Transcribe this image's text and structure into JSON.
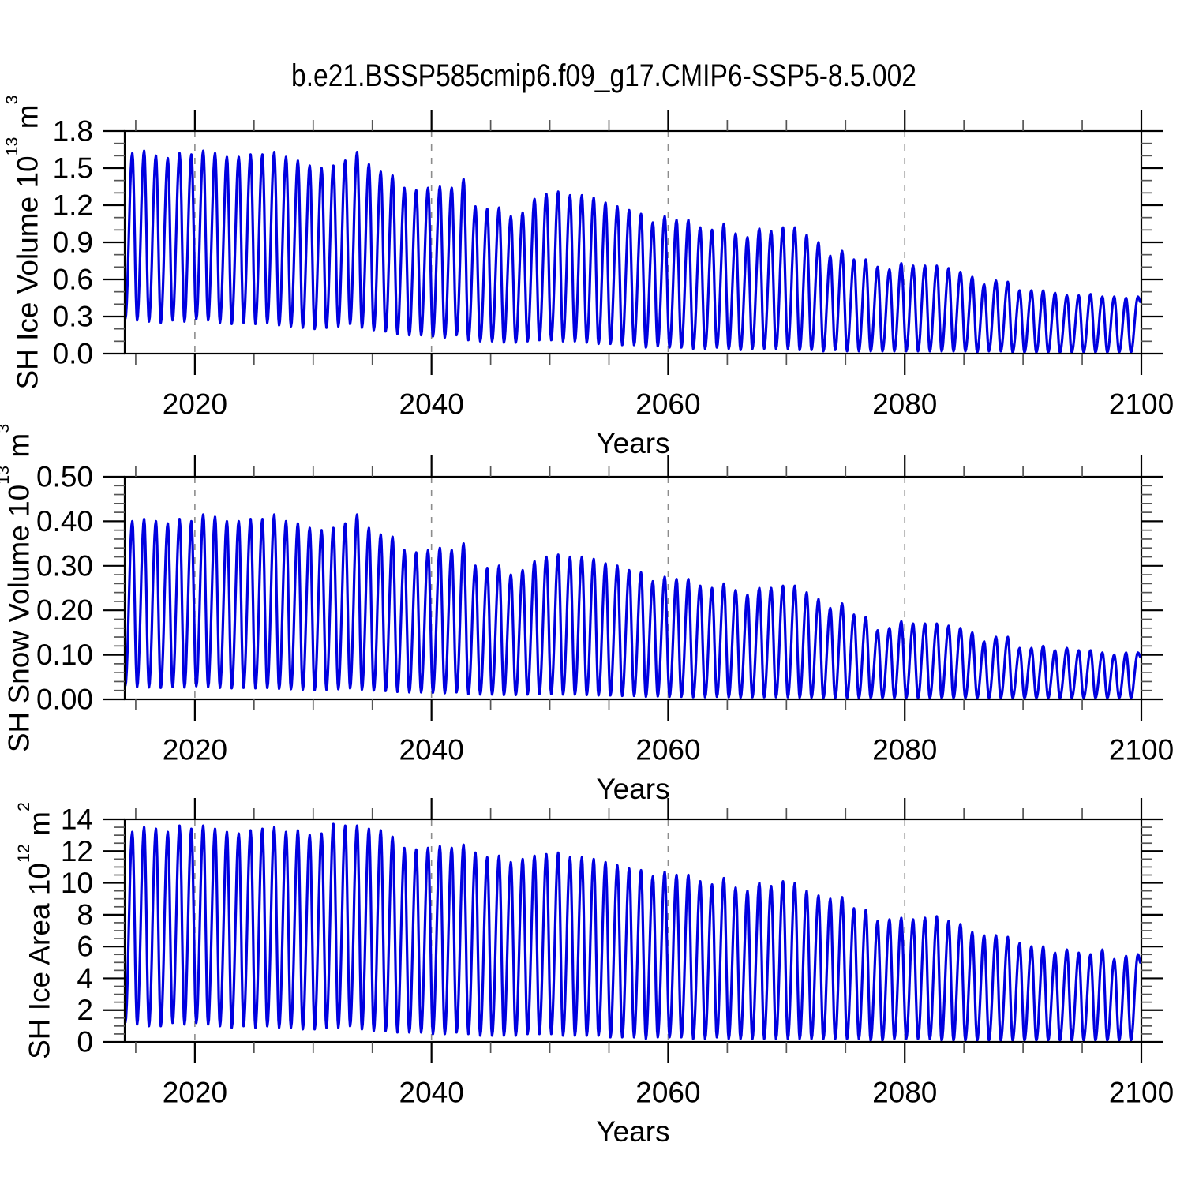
{
  "title": "b.e21.BSSP585cmip6.f09_g17.CMIP6-SSP5-8.5.002",
  "x_axis": {
    "label": "Years",
    "major_tick_years": [
      2020,
      2040,
      2060,
      2080,
      2100
    ],
    "major_tick_labels": [
      "2020",
      "2040",
      "2060",
      "2080",
      "2100"
    ],
    "minor_tick_step_years": 5,
    "range_years": [
      2014.07,
      2100
    ],
    "dashed_gridlines_at": [
      2020,
      2040,
      2060,
      2080
    ]
  },
  "style": {
    "line_color": "#0000e0",
    "axis_color": "#000000",
    "minor_tick_color": "#555555",
    "grid_color": "#8c8c8c",
    "background": "#ffffff"
  },
  "panels": [
    {
      "id": "ice-volume",
      "ylabel": {
        "base": "SH Ice Volume 10",
        "exp": "13",
        "unit": " m",
        "unit_exp": "3"
      },
      "y_tick_labels": [
        "0.0",
        "0.3",
        "0.6",
        "0.9",
        "1.2",
        "1.5",
        "1.8"
      ],
      "y_major_step": 0.3,
      "y_minor_step": 0.1,
      "ylim": [
        0,
        1.8
      ]
    },
    {
      "id": "snow-volume",
      "ylabel": {
        "base": "SH Snow Volume 10",
        "exp": "13",
        "unit": " m",
        "unit_exp": "3"
      },
      "y_tick_labels": [
        "0.00",
        "0.10",
        "0.20",
        "0.30",
        "0.40",
        "0.50"
      ],
      "y_major_step": 0.1,
      "y_minor_step": 0.02,
      "ylim": [
        0,
        0.5
      ]
    },
    {
      "id": "ice-area",
      "ylabel": {
        "base": "SH Ice Area 10",
        "exp": "12",
        "unit": " m",
        "unit_exp": "2"
      },
      "y_tick_labels": [
        "0",
        "2",
        "4",
        "6",
        "8",
        "10",
        "12",
        "14"
      ],
      "y_major_step": 2,
      "y_minor_step": 0.5,
      "ylim": [
        0,
        14
      ]
    }
  ],
  "chart_data": [
    {
      "type": "line",
      "title": "SH Ice Volume 10^13 m^3",
      "xlabel": "Years",
      "ylabel": "SH Ice Volume 10^13 m^3",
      "xlim": [
        2014,
        2100
      ],
      "ylim": [
        0,
        1.8
      ],
      "grid": "vertical dashed lines at 2020, 2040, 2060, 2080",
      "legend": "none",
      "seasonal_cycle": {
        "annual_min_time": "year+0.12 (Feb)",
        "annual_max_time": "year+0.71 (Sep)"
      },
      "series": [
        {
          "name": "SH ice volume (monthly, annual cycle envelope)",
          "years": {
            "start": 2014,
            "end": 2099,
            "step": 1
          },
          "annual_max": [
            1.62,
            1.64,
            1.6,
            1.58,
            1.62,
            1.61,
            1.64,
            1.62,
            1.59,
            1.59,
            1.61,
            1.61,
            1.63,
            1.59,
            1.56,
            1.52,
            1.5,
            1.52,
            1.56,
            1.63,
            1.53,
            1.47,
            1.44,
            1.34,
            1.32,
            1.34,
            1.35,
            1.34,
            1.41,
            1.19,
            1.17,
            1.18,
            1.11,
            1.14,
            1.25,
            1.29,
            1.31,
            1.28,
            1.28,
            1.26,
            1.22,
            1.19,
            1.16,
            1.13,
            1.06,
            1.11,
            1.08,
            1.08,
            1.02,
            1.0,
            1.05,
            0.97,
            0.94,
            1.01,
            0.99,
            1.02,
            1.02,
            0.96,
            0.9,
            0.79,
            0.83,
            0.76,
            0.76,
            0.7,
            0.68,
            0.73,
            0.71,
            0.71,
            0.71,
            0.69,
            0.66,
            0.62,
            0.56,
            0.59,
            0.58,
            0.51,
            0.51,
            0.51,
            0.49,
            0.47,
            0.47,
            0.48,
            0.46,
            0.46,
            0.45,
            0.46
          ],
          "annual_min": [
            0.28,
            0.27,
            0.26,
            0.25,
            0.27,
            0.26,
            0.28,
            0.27,
            0.25,
            0.24,
            0.25,
            0.24,
            0.25,
            0.23,
            0.22,
            0.21,
            0.2,
            0.21,
            0.22,
            0.24,
            0.21,
            0.19,
            0.18,
            0.16,
            0.15,
            0.15,
            0.14,
            0.13,
            0.15,
            0.11,
            0.1,
            0.1,
            0.09,
            0.09,
            0.1,
            0.11,
            0.11,
            0.1,
            0.1,
            0.09,
            0.08,
            0.08,
            0.07,
            0.07,
            0.05,
            0.06,
            0.05,
            0.05,
            0.04,
            0.04,
            0.05,
            0.04,
            0.03,
            0.04,
            0.04,
            0.04,
            0.04,
            0.03,
            0.03,
            0.02,
            0.03,
            0.02,
            0.02,
            0.02,
            0.02,
            0.02,
            0.02,
            0.02,
            0.02,
            0.02,
            0.02,
            0.02,
            0.01,
            0.02,
            0.02,
            0.01,
            0.01,
            0.01,
            0.01,
            0.01,
            0.01,
            0.01,
            0.01,
            0.01,
            0.01,
            0.01
          ]
        }
      ]
    },
    {
      "type": "line",
      "title": "SH Snow Volume 10^13 m^3",
      "xlabel": "Years",
      "ylabel": "SH Snow Volume 10^13 m^3",
      "xlim": [
        2014,
        2100
      ],
      "ylim": [
        0,
        0.5
      ],
      "grid": "vertical dashed lines at 2020, 2040, 2060, 2080",
      "legend": "none",
      "seasonal_cycle": {
        "annual_min_time": "year+0.12 (Feb)",
        "annual_max_time": "year+0.71 (Sep)"
      },
      "series": [
        {
          "name": "SH snow volume (monthly, annual cycle envelope)",
          "years": {
            "start": 2014,
            "end": 2099,
            "step": 1
          },
          "annual_max": [
            0.4,
            0.405,
            0.4,
            0.395,
            0.405,
            0.4,
            0.415,
            0.41,
            0.4,
            0.4,
            0.405,
            0.405,
            0.415,
            0.4,
            0.395,
            0.385,
            0.38,
            0.385,
            0.395,
            0.415,
            0.385,
            0.37,
            0.365,
            0.335,
            0.33,
            0.335,
            0.34,
            0.335,
            0.35,
            0.3,
            0.295,
            0.3,
            0.28,
            0.29,
            0.31,
            0.32,
            0.325,
            0.32,
            0.32,
            0.315,
            0.305,
            0.3,
            0.29,
            0.285,
            0.265,
            0.275,
            0.27,
            0.27,
            0.255,
            0.25,
            0.26,
            0.245,
            0.235,
            0.25,
            0.25,
            0.255,
            0.255,
            0.24,
            0.225,
            0.205,
            0.215,
            0.19,
            0.185,
            0.155,
            0.16,
            0.175,
            0.17,
            0.17,
            0.17,
            0.165,
            0.16,
            0.15,
            0.13,
            0.14,
            0.14,
            0.115,
            0.115,
            0.12,
            0.11,
            0.115,
            0.11,
            0.11,
            0.105,
            0.1,
            0.105,
            0.105
          ],
          "annual_min": [
            0.03,
            0.028,
            0.027,
            0.026,
            0.028,
            0.027,
            0.03,
            0.028,
            0.026,
            0.025,
            0.026,
            0.025,
            0.026,
            0.024,
            0.023,
            0.022,
            0.021,
            0.022,
            0.023,
            0.025,
            0.022,
            0.02,
            0.019,
            0.017,
            0.016,
            0.016,
            0.015,
            0.014,
            0.016,
            0.012,
            0.011,
            0.011,
            0.01,
            0.01,
            0.011,
            0.012,
            0.012,
            0.011,
            0.011,
            0.01,
            0.009,
            0.009,
            0.008,
            0.008,
            0.006,
            0.007,
            0.006,
            0.006,
            0.005,
            0.005,
            0.006,
            0.005,
            0.004,
            0.005,
            0.005,
            0.005,
            0.005,
            0.004,
            0.004,
            0.003,
            0.003,
            0.003,
            0.003,
            0.003,
            0.003,
            0.003,
            0.003,
            0.003,
            0.003,
            0.003,
            0.003,
            0.003,
            0.003,
            0.003,
            0.003,
            0.003,
            0.003,
            0.003,
            0.003,
            0.003,
            0.003,
            0.003,
            0.003,
            0.003,
            0.003,
            0.003
          ]
        }
      ]
    },
    {
      "type": "line",
      "title": "SH Ice Area 10^12 m^2",
      "xlabel": "Years",
      "ylabel": "SH Ice Area 10^12 m^2",
      "xlim": [
        2014,
        2100
      ],
      "ylim": [
        0,
        14
      ],
      "grid": "vertical dashed lines at 2020, 2040, 2060, 2080",
      "legend": "none",
      "seasonal_cycle": {
        "annual_min_time": "year+0.12 (Feb)",
        "annual_max_time": "year+0.71 (Sep)"
      },
      "series": [
        {
          "name": "SH ice area (monthly, annual cycle envelope)",
          "years": {
            "start": 2014,
            "end": 2099,
            "step": 1
          },
          "annual_max": [
            13.2,
            13.5,
            13.4,
            13.2,
            13.6,
            13.4,
            13.6,
            13.4,
            13.2,
            13.1,
            13.3,
            13.4,
            13.5,
            13.2,
            13.3,
            13.0,
            13.1,
            13.7,
            13.6,
            13.6,
            13.4,
            13.3,
            12.9,
            12.2,
            12.1,
            12.2,
            12.3,
            12.2,
            12.4,
            11.9,
            11.6,
            11.7,
            11.3,
            11.5,
            11.7,
            11.8,
            11.9,
            11.6,
            11.6,
            11.5,
            11.3,
            11.1,
            10.9,
            10.8,
            10.4,
            10.7,
            10.5,
            10.5,
            10.1,
            9.9,
            10.3,
            9.7,
            9.5,
            10.0,
            9.8,
            10.1,
            10.0,
            9.5,
            9.2,
            9.0,
            9.1,
            8.4,
            8.3,
            7.6,
            7.7,
            7.8,
            7.7,
            7.8,
            7.9,
            7.6,
            7.4,
            6.9,
            6.7,
            6.7,
            6.6,
            6.2,
            6.0,
            6.0,
            5.6,
            5.8,
            5.6,
            5.5,
            5.8,
            5.2,
            5.4,
            5.5
          ],
          "annual_min": [
            1.2,
            1.1,
            1.0,
            1.0,
            1.2,
            1.1,
            1.2,
            1.1,
            1.0,
            0.9,
            1.0,
            0.9,
            1.0,
            0.9,
            0.9,
            0.8,
            0.8,
            0.9,
            0.9,
            1.0,
            0.8,
            0.7,
            0.7,
            0.6,
            0.6,
            0.6,
            0.5,
            0.5,
            0.6,
            0.5,
            0.4,
            0.4,
            0.4,
            0.4,
            0.5,
            0.5,
            0.5,
            0.4,
            0.4,
            0.4,
            0.4,
            0.3,
            0.3,
            0.3,
            0.2,
            0.3,
            0.3,
            0.3,
            0.2,
            0.2,
            0.3,
            0.2,
            0.2,
            0.2,
            0.2,
            0.2,
            0.2,
            0.2,
            0.2,
            0.2,
            0.2,
            0.2,
            0.2,
            0.1,
            0.1,
            0.2,
            0.2,
            0.2,
            0.2,
            0.1,
            0.1,
            0.1,
            0.1,
            0.1,
            0.1,
            0.1,
            0.1,
            0.1,
            0.1,
            0.1,
            0.1,
            0.1,
            0.1,
            0.1,
            0.1,
            0.1
          ]
        }
      ]
    }
  ]
}
